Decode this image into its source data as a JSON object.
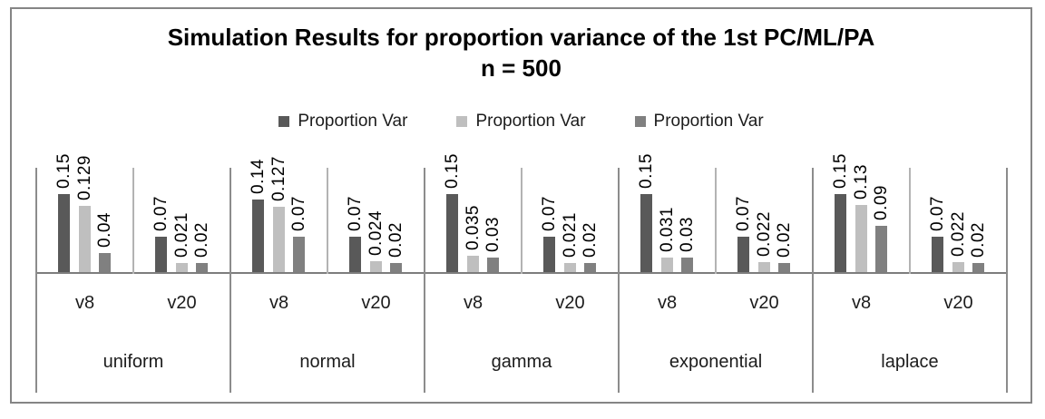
{
  "chart_data": {
    "type": "bar",
    "title": "Simulation Results for proportion variance of the 1st PC/ML/PA",
    "subtitle": "n = 500",
    "legend_position": "top-center",
    "grid": false,
    "ylim": [
      0,
      0.2
    ],
    "value_label_rotation": 90,
    "legend": [
      {
        "label": "Proportion Var",
        "color": "#595959"
      },
      {
        "label": "Proportion Var",
        "color": "#bfbfbf"
      },
      {
        "label": "Proportion Var",
        "color": "#808080"
      }
    ],
    "groups": [
      {
        "label": "uniform",
        "subgroups": [
          {
            "label": "v8",
            "values": [
              "0.15",
              "0.129",
              "0.04"
            ]
          },
          {
            "label": "v20",
            "values": [
              "0.07",
              "0.021",
              "0.02"
            ]
          }
        ]
      },
      {
        "label": "normal",
        "subgroups": [
          {
            "label": "v8",
            "values": [
              "0.14",
              "0.127",
              "0.07"
            ]
          },
          {
            "label": "v20",
            "values": [
              "0.07",
              "0.024",
              "0.02"
            ]
          }
        ]
      },
      {
        "label": "gamma",
        "subgroups": [
          {
            "label": "v8",
            "values": [
              "0.15",
              "0.035",
              "0.03"
            ]
          },
          {
            "label": "v20",
            "values": [
              "0.07",
              "0.021",
              "0.02"
            ]
          }
        ]
      },
      {
        "label": "exponential",
        "subgroups": [
          {
            "label": "v8",
            "values": [
              "0.15",
              "0.031",
              "0.03"
            ]
          },
          {
            "label": "v20",
            "values": [
              "0.07",
              "0.022",
              "0.02"
            ]
          }
        ]
      },
      {
        "label": "laplace",
        "subgroups": [
          {
            "label": "v8",
            "values": [
              "0.15",
              "0.13",
              "0.09"
            ]
          },
          {
            "label": "v20",
            "values": [
              "0.07",
              "0.022",
              "0.02"
            ]
          }
        ]
      }
    ]
  },
  "colors": {
    "frame_border": "#858585",
    "axis_line": "#7d7d7d",
    "group_divider": "#8c8c8c",
    "subgroup_divider": "#b3b3b3",
    "value_text": "#000000",
    "category_text": "#1c1c1c"
  }
}
